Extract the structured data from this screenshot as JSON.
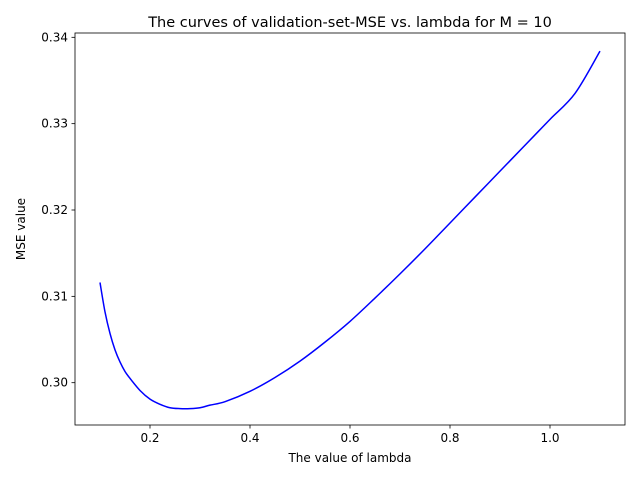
{
  "chart_data": {
    "type": "line",
    "title": "The curves of validation-set-MSE vs. lambda for M = 10",
    "xlabel": "The value of lambda",
    "ylabel": "MSE value",
    "xlim": [
      0.05,
      1.15
    ],
    "ylim": [
      0.2951,
      0.3405
    ],
    "grid": false,
    "x_ticks": [
      0.2,
      0.4,
      0.6,
      0.8,
      1.0
    ],
    "x_tick_labels": [
      "0.2",
      "0.4",
      "0.6",
      "0.8",
      "1.0"
    ],
    "y_ticks": [
      0.3,
      0.31,
      0.32,
      0.33,
      0.34
    ],
    "y_tick_labels": [
      "0.30",
      "0.31",
      "0.32",
      "0.33",
      "0.34"
    ],
    "series": [
      {
        "color": "#0000ff",
        "x": [
          0.1,
          0.11,
          0.12,
          0.13,
          0.14,
          0.15,
          0.16,
          0.18,
          0.2,
          0.22,
          0.24,
          0.26,
          0.28,
          0.3,
          0.32,
          0.35,
          0.4,
          0.45,
          0.5,
          0.55,
          0.6,
          0.65,
          0.7,
          0.75,
          0.8,
          0.85,
          0.9,
          0.95,
          1.0,
          1.05,
          1.1
        ],
        "y": [
          0.3116,
          0.3082,
          0.3057,
          0.3038,
          0.3024,
          0.3013,
          0.3005,
          0.2991,
          0.2981,
          0.2975,
          0.2971,
          0.297,
          0.297,
          0.2971,
          0.2974,
          0.2978,
          0.299,
          0.3006,
          0.3025,
          0.3047,
          0.3071,
          0.3098,
          0.3126,
          0.3155,
          0.3185,
          0.3215,
          0.3245,
          0.3275,
          0.3305,
          0.3335,
          0.3384
        ]
      }
    ]
  }
}
